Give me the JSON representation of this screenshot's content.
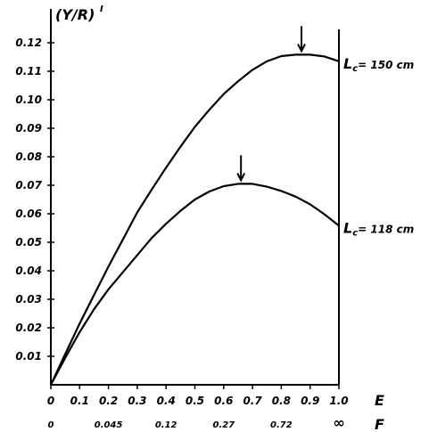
{
  "chart_data": {
    "type": "line",
    "ylabel": "(Y/R)",
    "ylabel_sup": "I",
    "xlabel": "E",
    "x2label": "F",
    "xlim": [
      0,
      1.0
    ],
    "ylim": [
      0,
      0.12
    ],
    "xticks": [
      "0",
      "0.1",
      "0.2",
      "0.3",
      "0.4",
      "0.5",
      "0.6",
      "0.7",
      "0.8",
      "0.9",
      "1.0"
    ],
    "yticks": [
      "0.01",
      "0.02",
      "0.03",
      "0.04",
      "0.05",
      "0.06",
      "0.07",
      "0.08",
      "0.09",
      "0.10",
      "0.11",
      "0.12"
    ],
    "x2ticks": [
      {
        "x": 0.0,
        "label": "0"
      },
      {
        "x": 0.2,
        "label": "0.045"
      },
      {
        "x": 0.4,
        "label": "0.12"
      },
      {
        "x": 0.6,
        "label": "0.27"
      },
      {
        "x": 0.8,
        "label": "0.72"
      },
      {
        "x": 1.0,
        "label": "∞"
      }
    ],
    "series": [
      {
        "name": "Lc = 150 cm",
        "label_main": "L",
        "label_sub": "c",
        "label_rest": "= 150  cm",
        "x": [
          0,
          0.05,
          0.1,
          0.15,
          0.2,
          0.25,
          0.3,
          0.35,
          0.4,
          0.45,
          0.5,
          0.55,
          0.6,
          0.65,
          0.7,
          0.75,
          0.8,
          0.85,
          0.9,
          0.95,
          1.0
        ],
        "y": [
          0,
          0.0108,
          0.0215,
          0.0315,
          0.0415,
          0.051,
          0.0605,
          0.0685,
          0.0762,
          0.0835,
          0.0905,
          0.0965,
          0.102,
          0.1065,
          0.1105,
          0.1135,
          0.1153,
          0.1158,
          0.1158,
          0.1152,
          0.1135
        ],
        "optimum_x": 0.87
      },
      {
        "name": "Lc = 118 cm",
        "label_main": "L",
        "label_sub": "c",
        "label_rest": "= 118  cm",
        "x": [
          0,
          0.05,
          0.1,
          0.15,
          0.2,
          0.25,
          0.3,
          0.35,
          0.4,
          0.45,
          0.5,
          0.55,
          0.6,
          0.65,
          0.7,
          0.75,
          0.8,
          0.85,
          0.9,
          0.95,
          1.0
        ],
        "y": [
          0,
          0.0095,
          0.0185,
          0.0265,
          0.0335,
          0.0395,
          0.0455,
          0.0515,
          0.0565,
          0.061,
          0.065,
          0.0678,
          0.0697,
          0.0705,
          0.0705,
          0.0695,
          0.068,
          0.066,
          0.0633,
          0.0598,
          0.0558
        ],
        "optimum_x": 0.66
      }
    ],
    "grid": false
  }
}
